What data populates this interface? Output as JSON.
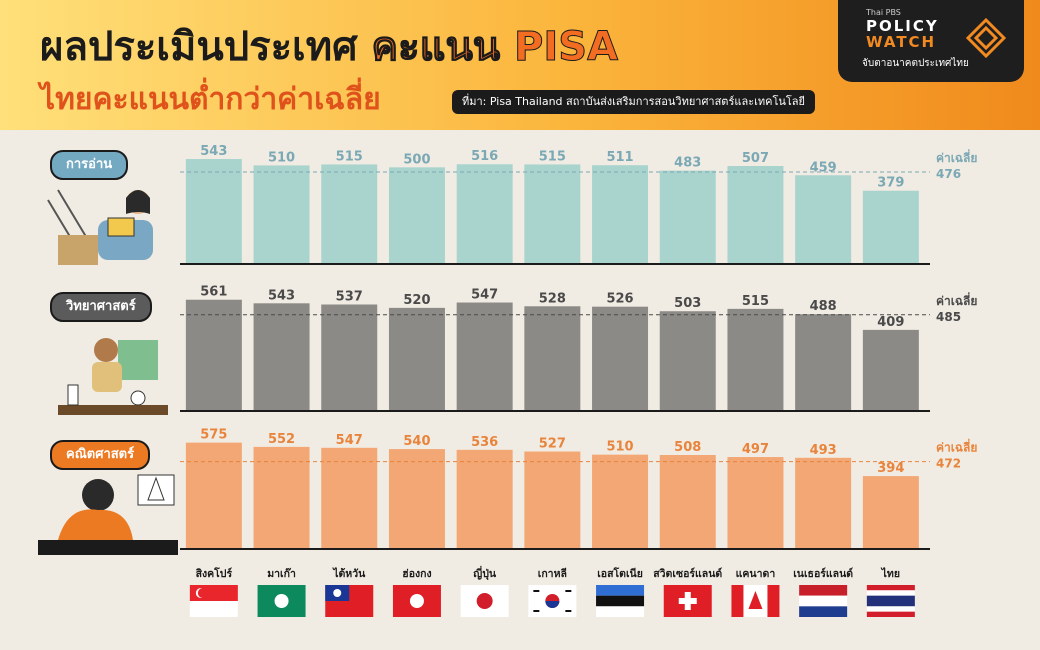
{
  "header": {
    "title_part1": "ผลประเมินประเทศ",
    "title_part2": "คะแนน PISA",
    "subtitle": "ไทยคะแนนต่ำกว่าค่าเฉลี่ย",
    "source": "ที่มา: Pisa Thailand สถาบันส่งเสริมการสอนวิทยาศาสตร์และเทคโนโลยี"
  },
  "logo": {
    "small": "Thai PBS",
    "policy": "POLICY",
    "watch": "WATCH",
    "tagline": "จับตาอนาคตประเทศไทย"
  },
  "chart_data": {
    "type": "bar",
    "categories": [
      "สิงคโปร์",
      "มาเก๊า",
      "ไต้หวัน",
      "ฮ่องกง",
      "ญี่ปุ่น",
      "เกาหลี",
      "เอสโตเนีย",
      "สวิตเซอร์แลนด์",
      "แคนาดา",
      "เนเธอร์แลนด์",
      "ไทย"
    ],
    "series": [
      {
        "name": "การอ่าน",
        "values": [
          543,
          510,
          515,
          500,
          516,
          515,
          511,
          483,
          507,
          459,
          379
        ],
        "average": 476,
        "average_label": "ค่าเฉลี่ย",
        "color": "#a9d4ce",
        "label_color": "#7aa8b4",
        "pill_color": "#74a9c2"
      },
      {
        "name": "วิทยาศาสตร์",
        "values": [
          561,
          543,
          537,
          520,
          547,
          528,
          526,
          503,
          515,
          488,
          409
        ],
        "average": 485,
        "average_label": "ค่าเฉลี่ย",
        "color": "#8c8a87",
        "label_color": "#4a4a4a",
        "pill_color": "#5b5b5b"
      },
      {
        "name": "คณิตศาสตร์",
        "values": [
          575,
          552,
          547,
          540,
          536,
          527,
          510,
          508,
          497,
          493,
          394
        ],
        "average": 472,
        "average_label": "ค่าเฉลี่ย",
        "color": "#f2a774",
        "label_color": "#e8843c",
        "pill_color": "#ec7a22"
      }
    ],
    "ylim": [
      0,
      600
    ],
    "flags": [
      "singapore",
      "macau",
      "taiwan",
      "hong-kong",
      "japan",
      "korea",
      "estonia",
      "switzerland",
      "canada",
      "netherlands",
      "thailand"
    ]
  }
}
